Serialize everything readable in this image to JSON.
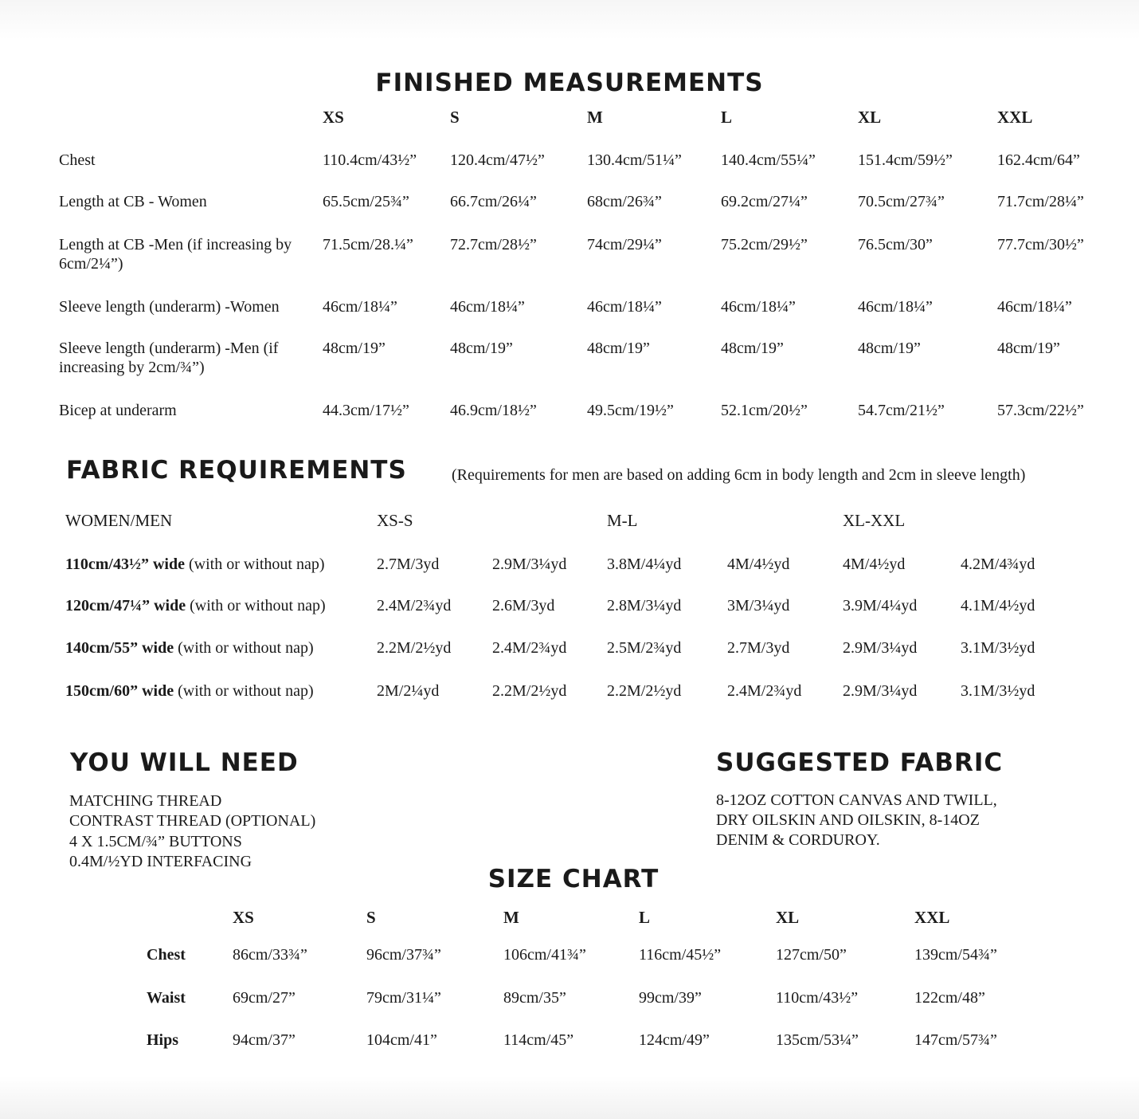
{
  "finished_measurements": {
    "title": "FINISHED MEASUREMENTS",
    "sizes": [
      "XS",
      "S",
      "M",
      "L",
      "XL",
      "XXL"
    ],
    "rows": [
      {
        "label": "Chest",
        "values": [
          "110.4cm/43½”",
          "120.4cm/47½”",
          "130.4cm/51¼”",
          "140.4cm/55¼”",
          "151.4cm/59½”",
          "162.4cm/64”"
        ]
      },
      {
        "label": "Length at CB - Women",
        "values": [
          "65.5cm/25¾”",
          "66.7cm/26¼”",
          "68cm/26¾”",
          "69.2cm/27¼”",
          "70.5cm/27¾”",
          "71.7cm/28¼”"
        ]
      },
      {
        "label": "Length at CB -Men (if increasing by 6cm/2¼”)",
        "values": [
          "71.5cm/28.¼”",
          "72.7cm/28½”",
          "74cm/29¼”",
          "75.2cm/29½”",
          "76.5cm/30”",
          "77.7cm/30½”"
        ]
      },
      {
        "label": "Sleeve length (underarm) -Women",
        "values": [
          "46cm/18¼”",
          "46cm/18¼”",
          "46cm/18¼”",
          "46cm/18¼”",
          "46cm/18¼”",
          "46cm/18¼”"
        ]
      },
      {
        "label": "Sleeve length (underarm) -Men (if increasing by 2cm/¾”)",
        "values": [
          "48cm/19”",
          "48cm/19”",
          "48cm/19”",
          "48cm/19”",
          "48cm/19”",
          "48cm/19”"
        ]
      },
      {
        "label": "Bicep at underarm",
        "values": [
          "44.3cm/17½”",
          "46.9cm/18½”",
          "49.5cm/19½”",
          "52.1cm/20½”",
          "54.7cm/21½”",
          "57.3cm/22½”"
        ]
      }
    ]
  },
  "fabric_requirements": {
    "title": "FABRIC REQUIREMENTS",
    "note": "(Requirements for men are based on adding 6cm in body length and 2cm in sleeve length)",
    "header_label": "WOMEN/MEN",
    "groups": [
      "XS-S",
      "M-L",
      "XL-XXL"
    ],
    "rows": [
      {
        "width": "110cm/43½” wide",
        "nap": " (with or without nap)",
        "values": [
          "2.7M/3yd",
          "2.9M/3¼yd",
          "3.8M/4¼yd",
          "4M/4½yd",
          "4M/4½yd",
          "4.2M/4¾yd"
        ]
      },
      {
        "width": "120cm/47¼” wide",
        "nap": " (with or without nap)",
        "values": [
          "2.4M/2¾yd",
          "2.6M/3yd",
          "2.8M/3¼yd",
          "3M/3¼yd",
          "3.9M/4¼yd",
          "4.1M/4½yd"
        ]
      },
      {
        "width": "140cm/55” wide",
        "nap": " (with or without nap)",
        "values": [
          "2.2M/2½yd",
          "2.4M/2¾yd",
          "2.5M/2¾yd",
          "2.7M/3yd",
          "2.9M/3¼yd",
          "3.1M/3½yd"
        ]
      },
      {
        "width": "150cm/60” wide",
        "nap": " (with or without nap)",
        "values": [
          "2M/2¼yd",
          "2.2M/2½yd",
          "2.2M/2½yd",
          "2.4M/2¾yd",
          "2.9M/3¼yd",
          "3.1M/3½yd"
        ]
      }
    ]
  },
  "you_will_need": {
    "title": "YOU WILL NEED",
    "items": [
      "MATCHING THREAD",
      "CONTRAST THREAD (OPTIONAL)",
      "4 X 1.5CM/¾” BUTTONS",
      "0.4M/½YD INTERFACING"
    ]
  },
  "suggested_fabric": {
    "title": "SUGGESTED FABRIC",
    "lines": [
      "8-12OZ COTTON CANVAS AND TWILL,",
      "DRY OILSKIN AND OILSKIN, 8-14OZ",
      "DENIM & CORDUROY."
    ]
  },
  "size_chart": {
    "title": "SIZE CHART",
    "sizes": [
      "XS",
      "S",
      "M",
      "L",
      "XL",
      "XXL"
    ],
    "rows": [
      {
        "label": "Chest",
        "values": [
          "86cm/33¾”",
          "96cm/37¾”",
          "106cm/41¾”",
          "116cm/45½”",
          "127cm/50”",
          "139cm/54¾”"
        ]
      },
      {
        "label": "Waist",
        "values": [
          "69cm/27”",
          "79cm/31¼”",
          "89cm/35”",
          "99cm/39”",
          "110cm/43½”",
          "122cm/48”"
        ]
      },
      {
        "label": "Hips",
        "values": [
          "94cm/37”",
          "104cm/41”",
          "114cm/45”",
          "124cm/49”",
          "135cm/53¼”",
          "147cm/57¾”"
        ]
      }
    ]
  }
}
